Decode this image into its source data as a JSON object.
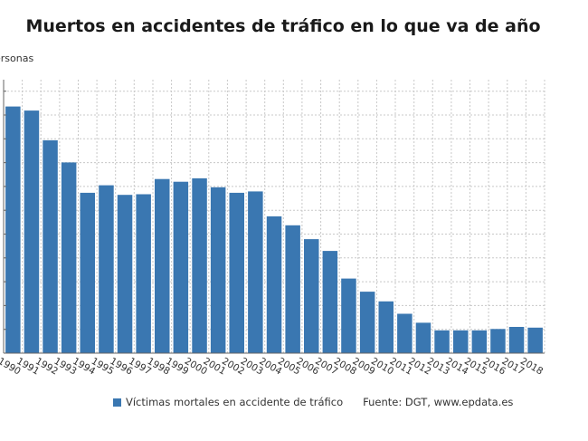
{
  "colors": {
    "bar": "#3a77b1",
    "grid": "#c8c8c8",
    "axis": "#666666"
  },
  "source": "Fuente: DGT, www.epdata.es",
  "chart_data": {
    "type": "bar",
    "title": "Muertos en accidentes de tráfico en lo que va de año",
    "ylabel": "ersonas",
    "xlabel": "",
    "grid": true,
    "legend_position": "bottom-left",
    "ylim": [
      0,
      3800
    ],
    "categories": [
      "1990",
      "1991",
      "1992",
      "1993",
      "1994",
      "1995",
      "1996",
      "1997",
      "1998",
      "1999",
      "2000",
      "2001",
      "2002",
      "2003",
      "2004",
      "2005",
      "2006",
      "2007",
      "2008",
      "2009",
      "2010",
      "2011",
      "2012",
      "2013",
      "2014",
      "2015",
      "2016",
      "2017",
      "2018"
    ],
    "series": [
      {
        "name": "Víctimas mortales en accidente de tráfico",
        "values": [
          3570,
          3510,
          3080,
          2760,
          2320,
          2430,
          2290,
          2300,
          2520,
          2480,
          2530,
          2400,
          2320,
          2340,
          1980,
          1850,
          1650,
          1480,
          1080,
          890,
          750,
          570,
          440,
          330,
          330,
          330,
          350,
          380,
          370
        ]
      }
    ]
  }
}
